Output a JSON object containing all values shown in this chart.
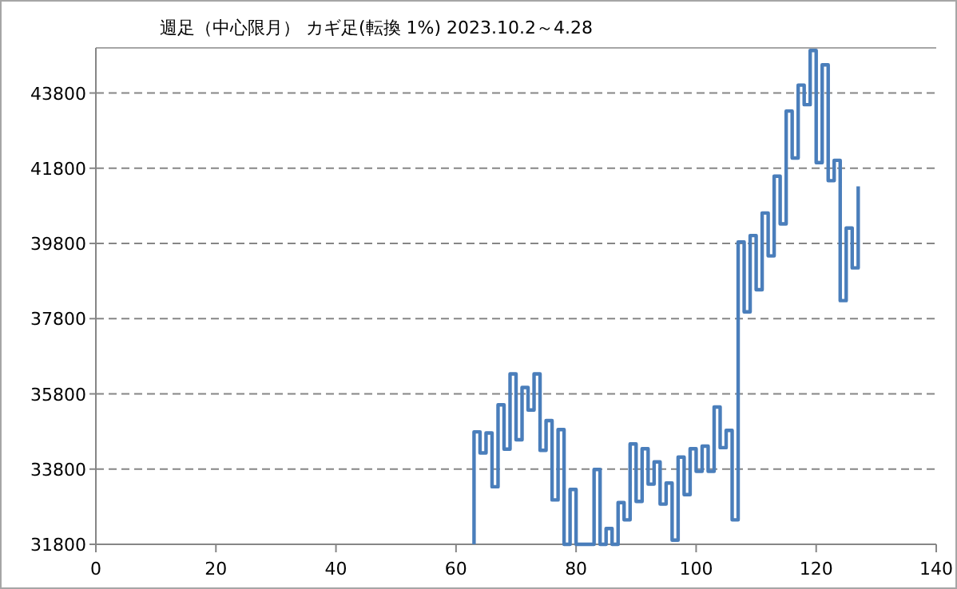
{
  "chart_data": {
    "type": "step",
    "title": "週足（中心限月） カギ足(転換 1%)  2023.10.2～4.28",
    "x": [
      63,
      63,
      64,
      65,
      66,
      67,
      68,
      69,
      70,
      71,
      72,
      73,
      74,
      75,
      76,
      77,
      78,
      79,
      80,
      83,
      84,
      85,
      86,
      87,
      88,
      89,
      90,
      91,
      92,
      93,
      94,
      95,
      96,
      97,
      98,
      99,
      100,
      101,
      102,
      103,
      104,
      105,
      106,
      107,
      108,
      109,
      110,
      111,
      112,
      113,
      114,
      115,
      116,
      117,
      118,
      119,
      120,
      121,
      122,
      123,
      124,
      125,
      126,
      127
    ],
    "values": [
      31800,
      34790,
      34230,
      34760,
      33330,
      35510,
      34330,
      36330,
      34580,
      35970,
      35370,
      36330,
      34300,
      35090,
      32980,
      34850,
      31800,
      33260,
      31800,
      33790,
      31800,
      32220,
      31800,
      32910,
      32450,
      34470,
      32940,
      34340,
      33400,
      33990,
      32870,
      33430,
      31910,
      34120,
      33120,
      34340,
      33740,
      34410,
      33740,
      35450,
      34370,
      34830,
      32450,
      39840,
      37980,
      40010,
      38570,
      40610,
      39470,
      41590,
      40320,
      43320,
      42070,
      44010,
      43490,
      44930,
      41950,
      44550,
      41470,
      42010,
      38280,
      40210,
      39150,
      41320
    ],
    "color": "#4a7ebb",
    "xlim": [
      0,
      140
    ],
    "xticks": [
      0,
      20,
      40,
      60,
      80,
      100,
      120,
      140
    ],
    "ylim": [
      31800,
      45000
    ],
    "yticks": [
      31800,
      33800,
      35800,
      37800,
      39800,
      41800,
      43800
    ],
    "grid": "y",
    "line_style": "solid"
  }
}
